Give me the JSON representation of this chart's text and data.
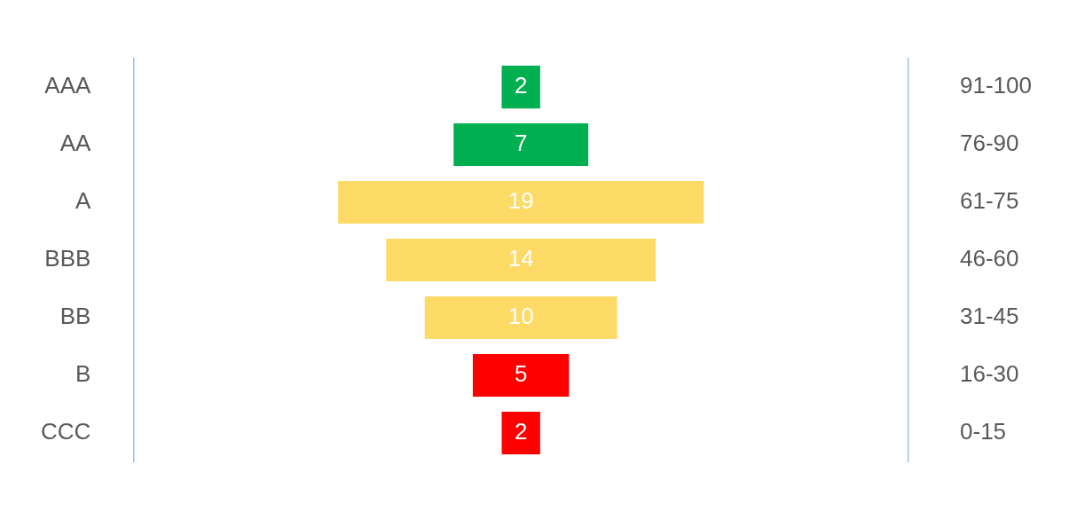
{
  "chart_data": {
    "type": "other",
    "categories": [
      "AAA",
      "AA",
      "A",
      "BBB",
      "BB",
      "B",
      "CCC"
    ],
    "y2_categories": [
      "91-100",
      "76-90",
      "61-75",
      "46-60",
      "31-45",
      "16-30",
      "0-15"
    ],
    "values": [
      2,
      7,
      19,
      14,
      10,
      5,
      2
    ],
    "colors": [
      "#00b050",
      "#00b050",
      "#fdd966",
      "#fdd966",
      "#fdd966",
      "#ff0000",
      "#ff0000"
    ],
    "data_labels": true,
    "legend": false
  }
}
